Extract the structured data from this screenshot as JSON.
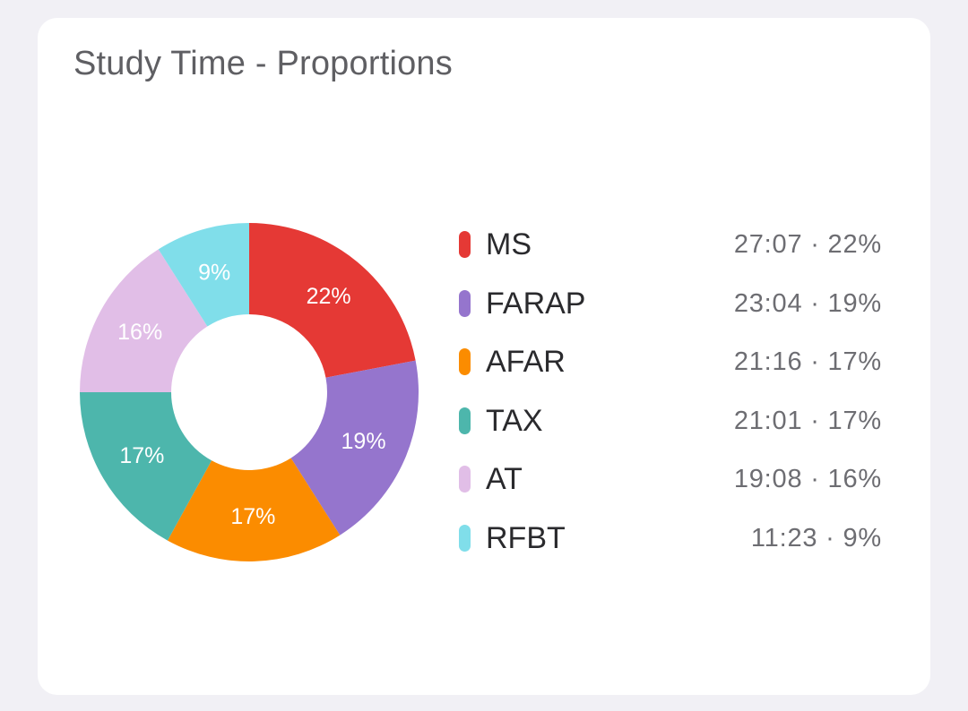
{
  "card": {
    "title": "Study Time - Proportions"
  },
  "chart_data": {
    "type": "pie",
    "variant": "donut",
    "title": "Study Time - Proportions",
    "legend_position": "right",
    "slices": [
      {
        "name": "MS",
        "time": "27:07",
        "percent": 22,
        "percent_label": "22%",
        "color": "#e53935"
      },
      {
        "name": "FARAP",
        "time": "23:04",
        "percent": 19,
        "percent_label": "19%",
        "color": "#9575cd"
      },
      {
        "name": "AFAR",
        "time": "21:16",
        "percent": 17,
        "percent_label": "17%",
        "color": "#fb8c00"
      },
      {
        "name": "TAX",
        "time": "21:01",
        "percent": 17,
        "percent_label": "17%",
        "color": "#4db6ac"
      },
      {
        "name": "AT",
        "time": "19:08",
        "percent": 16,
        "percent_label": "16%",
        "color": "#e1bee7"
      },
      {
        "name": "RFBT",
        "time": "11:23",
        "percent": 9,
        "percent_label": "9%",
        "color": "#80deea"
      }
    ]
  }
}
